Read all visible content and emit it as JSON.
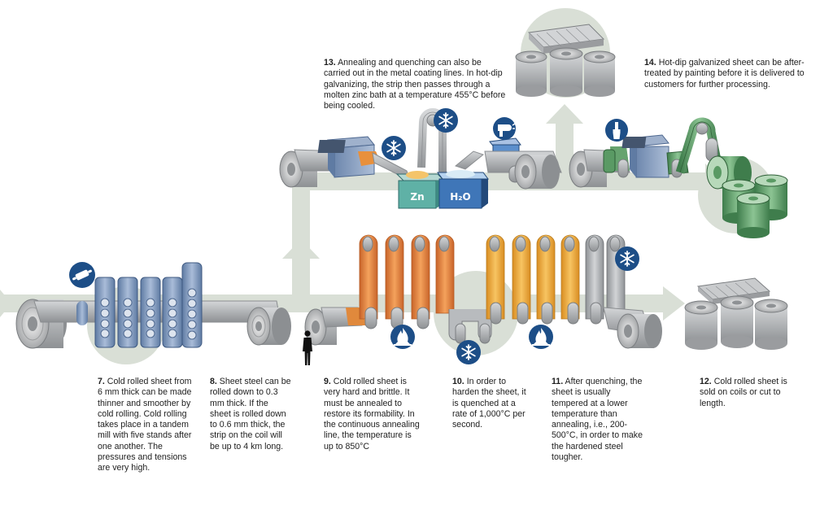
{
  "steps": [
    {
      "number": "7.",
      "text": "Cold rolled sheet from 6 mm thick can be made thinner and smoother by cold rolling. Cold rolling takes place in a tandem mill with five stands after one another. The pressures and tensions are very high."
    },
    {
      "number": "8.",
      "text": "Sheet steel can be rolled down to 0.3 mm thick. If the sheet is rolled down to 0.6 mm thick, the strip on the coil will be up to 4 km long."
    },
    {
      "number": "9.",
      "text": "Cold rolled sheet is very hard and brittle. It must be annealed to restore its formability. In the continuous annealing line, the temperature is up to 850°C"
    },
    {
      "number": "10.",
      "text": "In order to harden the sheet, it is quenched at a rate of 1,000°C per second."
    },
    {
      "number": "11.",
      "text": "After quenching, the sheet is usually tempered at a lower temperature than annealing, i.e., 200-500°C, in order to make the hardened steel tougher."
    },
    {
      "number": "12.",
      "text": "Cold rolled sheet is sold on coils or cut to length."
    },
    {
      "number": "13.",
      "text": "Annealing and quenching can also be carried out in the metal coating lines. In hot-dip galvanizing, the strip then passes through a molten zinc bath at a temperature 455°C before being cooled."
    },
    {
      "number": "14.",
      "text": "Hot-dip galvanized sheet can be after-treated by painting before it is delivered to customers for further processing."
    }
  ],
  "tank_labels": {
    "zinc": "Zn",
    "water": "H₂O"
  },
  "icons": [
    "rolling-pin-icon",
    "snowflake-icon",
    "flame-icon",
    "hair-dryer-icon",
    "paint-brush-icon",
    "person-silhouette-icon",
    "flow-arrow-icon"
  ],
  "colors": {
    "flow": "#d9dfd6",
    "badge": "#1d4e87",
    "hot": "#e9843a",
    "tempered": "#f0a93c",
    "steel": "#a9abae",
    "coated": "#5a9a64",
    "frame": "#7f96b6"
  }
}
